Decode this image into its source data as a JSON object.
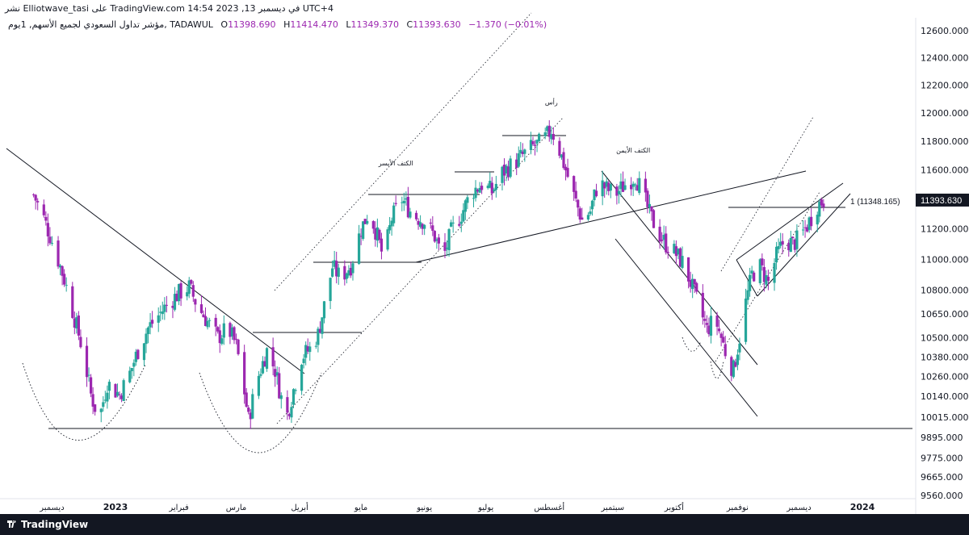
{
  "header": {
    "caption": "نشر Elliotwave_tasi على TradingView.com في ديسمبر 13, 2023 14:54 UTC+4"
  },
  "legend": {
    "symbol": "مؤشر تداول السعودي لجميع الأسهم, 1يوم, TADAWUL",
    "open_label": "O",
    "open": "11398.690",
    "high_label": "H",
    "high": "11414.470",
    "low_label": "L",
    "low": "11349.370",
    "close_label": "C",
    "close": "11393.630",
    "change": "−1.370 (−0.01%)"
  },
  "footer": {
    "brand": "TradingView"
  },
  "colors": {
    "bull": "#26a69a",
    "bear": "#9c27b0",
    "line": "#131722",
    "axis_bg": "#ffffff",
    "footer_bg": "#131722"
  },
  "chart_data": {
    "type": "candlestick",
    "y_scale": "log",
    "ylim": [
      9500,
      12800
    ],
    "y_ticks": [
      12600,
      12400,
      12200,
      12000,
      11800,
      11600,
      11400,
      11200,
      11000,
      10800,
      10650,
      10500,
      10380,
      10260,
      10140,
      10015,
      9895,
      9775,
      9665,
      9560
    ],
    "y_tick_labels": [
      "12600.000",
      "12400.000",
      "12200.000",
      "12000.000",
      "11800.000",
      "11600.000",
      "11400.000",
      "11200.000",
      "11000.000",
      "10800.000",
      "10650.000",
      "10500.000",
      "10380.000",
      "10260.000",
      "10140.000",
      "10015.000",
      "9895.000",
      "9775.000",
      "9665.000",
      "9560.000"
    ],
    "x_labels": [
      {
        "text": "ديسمبر",
        "date": "2022-12-01",
        "bold": false
      },
      {
        "text": "2023",
        "date": "2023-01-01",
        "bold": true
      },
      {
        "text": "فبراير",
        "date": "2023-02-01",
        "bold": false
      },
      {
        "text": "مارس",
        "date": "2023-03-01",
        "bold": false
      },
      {
        "text": "أبريل",
        "date": "2023-04-01",
        "bold": false
      },
      {
        "text": "مايو",
        "date": "2023-05-01",
        "bold": false
      },
      {
        "text": "يونيو",
        "date": "2023-06-01",
        "bold": false
      },
      {
        "text": "يوليو",
        "date": "2023-07-01",
        "bold": false
      },
      {
        "text": "أغسطس",
        "date": "2023-08-01",
        "bold": false
      },
      {
        "text": "سبتمبر",
        "date": "2023-09-01",
        "bold": false
      },
      {
        "text": "أكتوبر",
        "date": "2023-10-01",
        "bold": false
      },
      {
        "text": "نوفمبر",
        "date": "2023-11-01",
        "bold": false
      },
      {
        "text": "ديسمبر",
        "date": "2023-12-01",
        "bold": false
      },
      {
        "text": "2024",
        "date": "2024-01-01",
        "bold": true
      }
    ],
    "last_price": {
      "value": 11393.63,
      "label": "11393.630"
    },
    "fib_label": {
      "text": "1 (11348.165)",
      "value": 11348.165
    },
    "close_path": [
      [
        "2022-11-22",
        11430
      ],
      [
        "2022-11-27",
        11270
      ],
      [
        "2022-12-02",
        11080
      ],
      [
        "2022-12-07",
        10870
      ],
      [
        "2022-12-12",
        10620
      ],
      [
        "2022-12-16",
        10420
      ],
      [
        "2022-12-20",
        10150
      ],
      [
        "2022-12-24",
        10000
      ],
      [
        "2022-12-28",
        10220
      ],
      [
        "2023-01-03",
        10150
      ],
      [
        "2023-01-08",
        10280
      ],
      [
        "2023-01-12",
        10420
      ],
      [
        "2023-01-17",
        10560
      ],
      [
        "2023-01-22",
        10640
      ],
      [
        "2023-01-27",
        10720
      ],
      [
        "2023-02-01",
        10780
      ],
      [
        "2023-02-06",
        10820
      ],
      [
        "2023-02-10",
        10700
      ],
      [
        "2023-02-15",
        10600
      ],
      [
        "2023-02-20",
        10500
      ],
      [
        "2023-02-25",
        10560
      ],
      [
        "2023-03-01",
        10450
      ],
      [
        "2023-03-04",
        10250
      ],
      [
        "2023-03-07",
        10000
      ],
      [
        "2023-03-11",
        10230
      ],
      [
        "2023-03-16",
        10420
      ],
      [
        "2023-03-20",
        10300
      ],
      [
        "2023-03-23",
        10130
      ],
      [
        "2023-03-25",
        9980
      ],
      [
        "2023-03-29",
        10180
      ],
      [
        "2023-04-02",
        10380
      ],
      [
        "2023-04-06",
        10430
      ],
      [
        "2023-04-10",
        10520
      ],
      [
        "2023-04-13",
        10700
      ],
      [
        "2023-04-17",
        10950
      ],
      [
        "2023-04-21",
        10880
      ],
      [
        "2023-04-26",
        10960
      ],
      [
        "2023-05-01",
        11200
      ],
      [
        "2023-05-05",
        11320
      ],
      [
        "2023-05-09",
        11150
      ],
      [
        "2023-05-12",
        11000
      ],
      [
        "2023-05-16",
        11270
      ],
      [
        "2023-05-21",
        11400
      ],
      [
        "2023-05-26",
        11300
      ],
      [
        "2023-06-01",
        11250
      ],
      [
        "2023-06-06",
        11150
      ],
      [
        "2023-06-10",
        11000
      ],
      [
        "2023-06-14",
        11180
      ],
      [
        "2023-06-19",
        11300
      ],
      [
        "2023-06-24",
        11450
      ],
      [
        "2023-06-29",
        11500
      ],
      [
        "2023-07-04",
        11450
      ],
      [
        "2023-07-09",
        11580
      ],
      [
        "2023-07-14",
        11640
      ],
      [
        "2023-07-19",
        11700
      ],
      [
        "2023-07-24",
        11760
      ],
      [
        "2023-07-29",
        11800
      ],
      [
        "2023-08-02",
        11880
      ],
      [
        "2023-08-05",
        11780
      ],
      [
        "2023-08-09",
        11600
      ],
      [
        "2023-08-13",
        11420
      ],
      [
        "2023-08-17",
        11260
      ],
      [
        "2023-08-21",
        11320
      ],
      [
        "2023-08-25",
        11520
      ],
      [
        "2023-08-29",
        11470
      ],
      [
        "2023-09-02",
        11430
      ],
      [
        "2023-09-07",
        11500
      ],
      [
        "2023-09-12",
        11560
      ],
      [
        "2023-09-16",
        11420
      ],
      [
        "2023-09-19",
        11300
      ],
      [
        "2023-09-23",
        11180
      ],
      [
        "2023-09-27",
        11100
      ],
      [
        "2023-10-01",
        11050
      ],
      [
        "2023-10-05",
        10980
      ],
      [
        "2023-10-09",
        10850
      ],
      [
        "2023-10-13",
        10700
      ],
      [
        "2023-10-17",
        10550
      ],
      [
        "2023-10-21",
        10620
      ],
      [
        "2023-10-24",
        10500
      ],
      [
        "2023-10-27",
        10370
      ],
      [
        "2023-10-30",
        10300
      ],
      [
        "2023-11-02",
        10500
      ],
      [
        "2023-11-05",
        10720
      ],
      [
        "2023-11-08",
        10900
      ],
      [
        "2023-11-12",
        10950
      ],
      [
        "2023-11-16",
        10850
      ],
      [
        "2023-11-20",
        11020
      ],
      [
        "2023-11-24",
        11130
      ],
      [
        "2023-11-28",
        11100
      ],
      [
        "2023-12-02",
        11150
      ],
      [
        "2023-12-06",
        11250
      ],
      [
        "2023-12-10",
        11360
      ],
      [
        "2023-12-13",
        11393
      ]
    ],
    "annotations": [
      {
        "text": "رأس",
        "date": "2023-08-02",
        "value": 12060
      },
      {
        "text": "الكتف الأيسر",
        "date": "2023-05-18",
        "value": 11630
      },
      {
        "text": "الكتف الأيمن",
        "date": "2023-09-11",
        "value": 11720
      }
    ]
  }
}
